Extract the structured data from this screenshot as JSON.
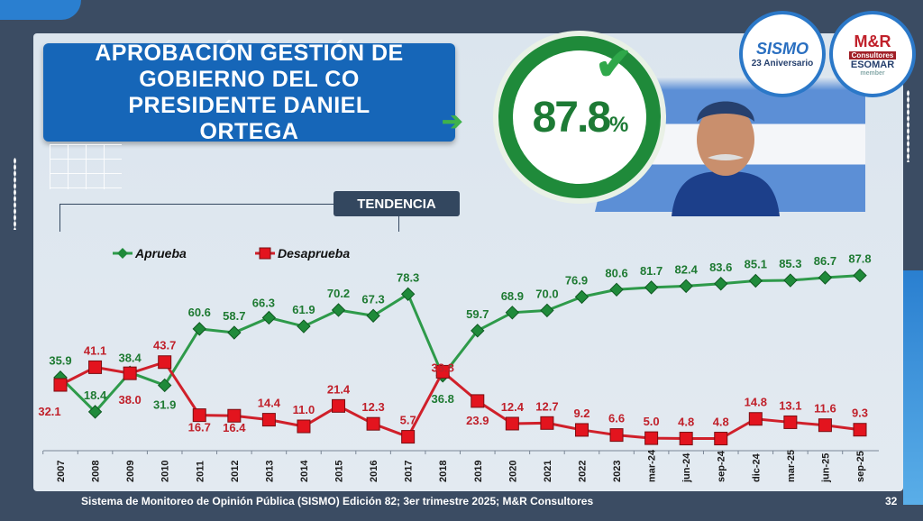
{
  "header": {
    "title": "APROBACIÓN GESTIÓN DE GOBIERNO DEL CO PRESIDENTE DANIEL ORTEGA",
    "headline_value": "87.8",
    "headline_unit": "%",
    "section_label": "TENDENCIA"
  },
  "logos": {
    "sismo": {
      "name": "SISMO",
      "subtitle": "23 Aniversario"
    },
    "mr": {
      "name": "M&R",
      "sub1": "Consultores",
      "sub2": "ESOMAR",
      "sub3": "member"
    }
  },
  "footer": {
    "source": "Sistema de Monitoreo de Opinión Pública (SISMO) Edición 82; 3er trimestre 2025; M&R Consultores",
    "page": "32"
  },
  "colors": {
    "aprueba": "#2e9a4a",
    "desaprueba": "#d0202a",
    "title_bg": "#1666b8",
    "background": "#3b4c63"
  },
  "chart_data": {
    "type": "line",
    "categories": [
      "2007",
      "2008",
      "2009",
      "2010",
      "2011",
      "2012",
      "2013",
      "2014",
      "2015",
      "2016",
      "2017",
      "2018",
      "2019",
      "2020",
      "2021",
      "2022",
      "2023",
      "mar-24",
      "jun-24",
      "sep-24",
      "dic-24",
      "mar-25",
      "jun-25",
      "sep-25"
    ],
    "series": [
      {
        "name": "Aprueba",
        "marker": "diamond",
        "color": "#2e9a4a",
        "label_color": "#1e7a32",
        "values": [
          35.9,
          18.4,
          38.4,
          31.9,
          60.6,
          58.7,
          66.3,
          61.9,
          70.2,
          67.3,
          78.3,
          36.8,
          59.7,
          68.9,
          70.0,
          76.9,
          80.6,
          81.7,
          82.4,
          83.6,
          85.1,
          85.3,
          86.7,
          87.8
        ]
      },
      {
        "name": "Desaprueba",
        "marker": "square",
        "color": "#d0202a",
        "label_color": "#c0202a",
        "values": [
          32.1,
          41.1,
          38.0,
          43.7,
          16.7,
          16.4,
          14.4,
          11.0,
          21.4,
          12.3,
          5.7,
          38.8,
          23.9,
          12.4,
          12.7,
          9.2,
          6.6,
          5.0,
          4.8,
          4.8,
          14.8,
          13.1,
          11.6,
          9.3
        ]
      }
    ],
    "legend": "top-left",
    "grid": false,
    "ylim": [
      0,
      90
    ]
  }
}
